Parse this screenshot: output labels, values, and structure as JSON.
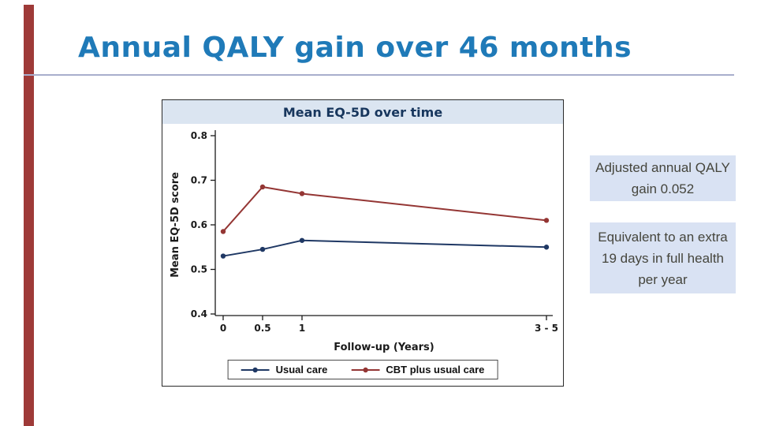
{
  "slide": {
    "title": "Annual QALY gain over 46 months",
    "title_color": "#1f7ab8",
    "accent_color": "#9e3a38",
    "callout_bg": "#d9e2f3",
    "callout_text_color": "#45453c"
  },
  "chart_data": {
    "type": "line",
    "title": "Mean EQ-5D over time",
    "xlabel": "Follow-up (Years)",
    "ylabel": "Mean EQ-5D score",
    "x_tick_labels": [
      "0",
      "0.5",
      "1",
      "3 - 5"
    ],
    "x_tick_values": [
      0,
      0.5,
      1,
      4.1
    ],
    "xlim": [
      -0.1,
      4.3
    ],
    "y_ticks": [
      0.4,
      0.5,
      0.6,
      0.7,
      0.8
    ],
    "ylim": [
      0.4,
      0.8
    ],
    "grid": false,
    "legend_position": "bottom",
    "series": [
      {
        "name": "Usual care",
        "color": "#1f3864",
        "x": [
          0,
          0.5,
          1,
          4.1
        ],
        "values": [
          0.53,
          0.545,
          0.565,
          0.55
        ]
      },
      {
        "name": "CBT plus usual care",
        "color": "#943634",
        "x": [
          0,
          0.5,
          1,
          4.1
        ],
        "values": [
          0.585,
          0.685,
          0.67,
          0.61
        ]
      }
    ]
  },
  "callouts": [
    {
      "text": "Adjusted annual QALY gain 0.052"
    },
    {
      "text": "Equivalent to an extra 19 days in full health per year"
    }
  ]
}
